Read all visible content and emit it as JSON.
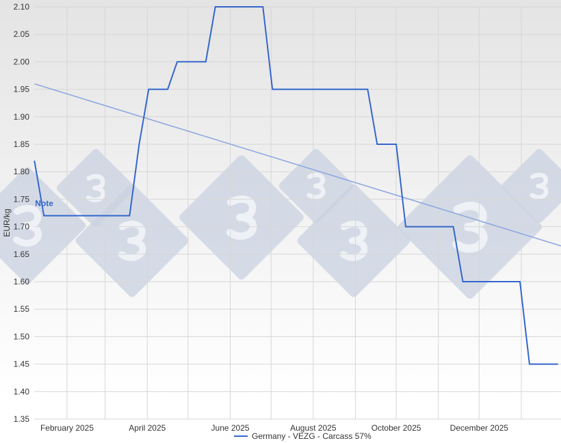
{
  "chart_data": {
    "type": "line",
    "title": "",
    "ylabel": "EUR/kg",
    "xlabel": "",
    "ylim": [
      1.35,
      2.1
    ],
    "yticks": [
      "1.35",
      "1.40",
      "1.45",
      "1.50",
      "1.55",
      "1.60",
      "1.65",
      "1.70",
      "1.75",
      "1.80",
      "1.85",
      "1.90",
      "1.95",
      "2.00",
      "2.05",
      "2.10"
    ],
    "xtick_labels": [
      {
        "date": "2025-02-01",
        "label": "February 2025"
      },
      {
        "date": "2025-04-01",
        "label": "April 2025"
      },
      {
        "date": "2025-06-01",
        "label": "June 2025"
      },
      {
        "date": "2025-08-01",
        "label": "August 2025"
      },
      {
        "date": "2025-10-01",
        "label": "October 2025"
      },
      {
        "date": "2025-12-01",
        "label": "December 2025"
      }
    ],
    "grid": true,
    "legend_position": "bottom",
    "series": [
      {
        "name": "Germany - VEZG - Carcass 57%",
        "color": "#3366cc",
        "points": [
          [
            "2025-01-08",
            1.82
          ],
          [
            "2025-01-15",
            1.72
          ],
          [
            "2025-03-19",
            1.72
          ],
          [
            "2025-03-26",
            1.85
          ],
          [
            "2025-04-02",
            1.95
          ],
          [
            "2025-04-16",
            1.95
          ],
          [
            "2025-04-23",
            2.0
          ],
          [
            "2025-05-14",
            2.0
          ],
          [
            "2025-05-21",
            2.1
          ],
          [
            "2025-06-25",
            2.1
          ],
          [
            "2025-07-02",
            1.95
          ],
          [
            "2025-09-10",
            1.95
          ],
          [
            "2025-09-17",
            1.85
          ],
          [
            "2025-10-01",
            1.85
          ],
          [
            "2025-10-08",
            1.7
          ],
          [
            "2025-11-12",
            1.7
          ],
          [
            "2025-11-19",
            1.6
          ],
          [
            "2025-12-31",
            1.6
          ],
          [
            "2026-01-07",
            1.45
          ],
          [
            "2026-01-28",
            1.45
          ]
        ]
      }
    ],
    "trendline": {
      "color": "#8fa8e0",
      "points": [
        [
          "2025-01-08",
          1.96
        ],
        [
          "2026-01-31",
          1.665
        ]
      ]
    },
    "annotation": {
      "text": "Note",
      "date": "2025-01-08",
      "value": 1.745
    }
  }
}
